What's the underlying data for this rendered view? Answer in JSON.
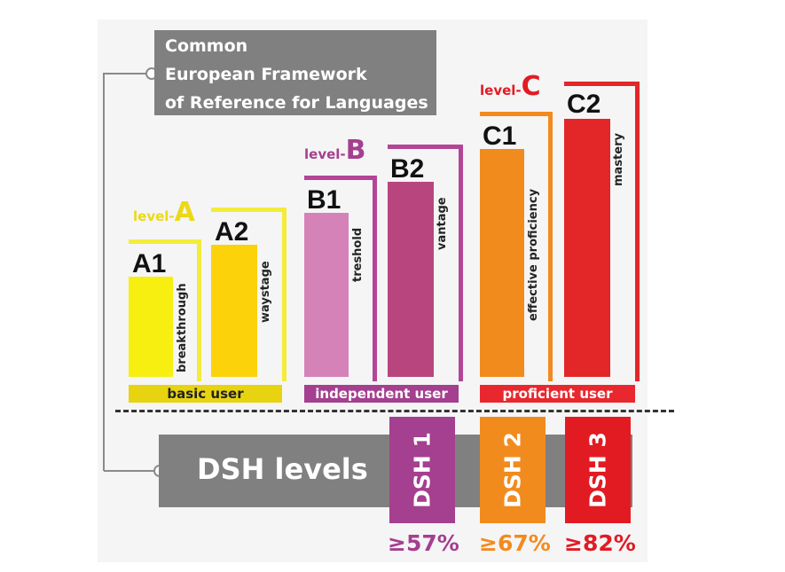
{
  "cefr": {
    "title_lines": [
      "Common",
      "European Framework",
      "of Reference for Languages"
    ]
  },
  "levels": {
    "a": {
      "prefix": "level-",
      "letter": "A",
      "color": "#ecd915"
    },
    "b": {
      "prefix": "level-",
      "letter": "B",
      "color": "#a53f8f"
    },
    "c": {
      "prefix": "level-",
      "letter": "C",
      "color": "#e21b23"
    }
  },
  "bars": [
    {
      "code": "A1",
      "descriptor": "breakthrough",
      "fill": "#f7ef10",
      "frame": "#f3ec3a"
    },
    {
      "code": "A2",
      "descriptor": "waystage",
      "fill": "#fcd20a",
      "frame": "#f3ec3a"
    },
    {
      "code": "B1",
      "descriptor": "treshold",
      "fill": "#d582b8",
      "frame": "#b34596"
    },
    {
      "code": "B2",
      "descriptor": "vantage",
      "fill": "#b9457f",
      "frame": "#b34596"
    },
    {
      "code": "C1",
      "descriptor": "effective proficiency",
      "fill": "#f28b1e",
      "frame": "#f28b1e"
    },
    {
      "code": "C2",
      "descriptor": "mastery",
      "fill": "#e32628",
      "frame": "#e32628"
    }
  ],
  "bands": {
    "basic": {
      "label": "basic user",
      "color": "#e8d311"
    },
    "independent": {
      "label": "independent user",
      "color": "#a53f8f"
    },
    "proficient": {
      "label": "proficient user",
      "color": "#e8282e"
    }
  },
  "dsh": {
    "title": "DSH levels",
    "columns": [
      {
        "label": "DSH 1",
        "percent": "≥57%",
        "color": "#a53f8f"
      },
      {
        "label": "DSH 2",
        "percent": "≥67%",
        "color": "#f28b1e"
      },
      {
        "label": "DSH 3",
        "percent": "≥82%",
        "color": "#e21b23"
      }
    ]
  }
}
